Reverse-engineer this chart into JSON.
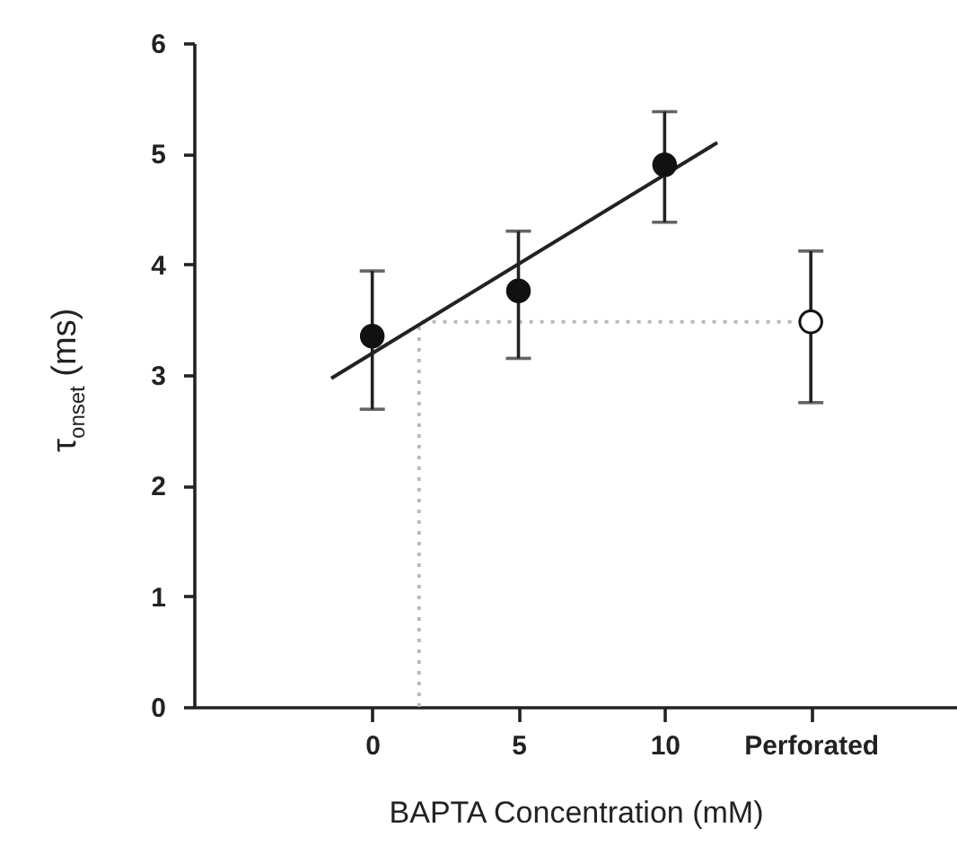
{
  "chart_data": {
    "type": "scatter",
    "xlabel": "BAPTA Concentration (mM)",
    "ylabel": "τ$_{onset}$ (ms)",
    "xlim": [
      -6.1,
      20
    ],
    "xticks": [
      0,
      5,
      10,
      {
        "value": 15,
        "label": "Perforated"
      }
    ],
    "ylim": [
      0,
      6
    ],
    "yticks": [
      0,
      1,
      2,
      3,
      4,
      5,
      6
    ],
    "grid": false,
    "marker": "circle",
    "series": [
      {
        "type": "line",
        "color": "#bbbbbb",
        "line_style": "dotted",
        "marker": "none",
        "x": [
          1.6,
          1.6,
          15
        ],
        "values": [
          0,
          3.48,
          3.48
        ]
      },
      {
        "type": "line",
        "color": "#222222",
        "line_style": "solid",
        "marker": "none",
        "x": [
          -1.4,
          11.8
        ],
        "values": [
          2.97,
          5.1
        ]
      },
      {
        "color": "#111111",
        "x": [
          0,
          5,
          10
        ],
        "values": [
          3.35,
          3.76,
          4.9
        ],
        "errors": [
          [
            2.69,
            3.94
          ],
          [
            3.15,
            4.3
          ],
          [
            4.38,
            5.38
          ]
        ]
      },
      {
        "color": "#ffffff",
        "x": [
          15
        ],
        "values": [
          3.48
        ],
        "errors": [
          [
            2.75,
            4.12
          ]
        ]
      }
    ]
  }
}
